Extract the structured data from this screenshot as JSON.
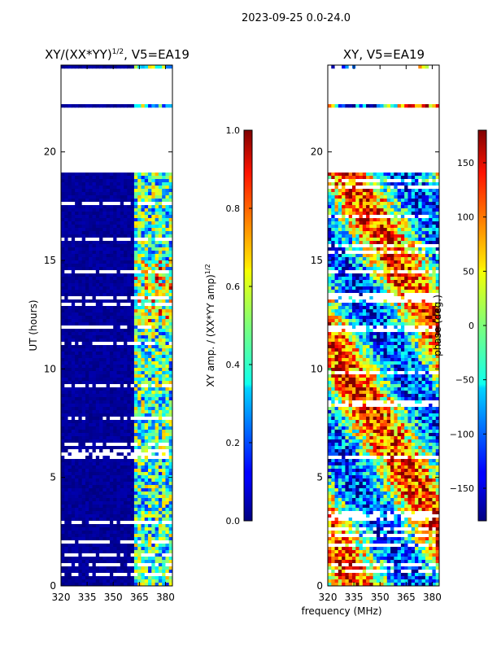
{
  "figure": {
    "suptitle": "2023-09-25 0.0-24.0",
    "xlabel": "frequency (MHz)"
  },
  "chart_data": [
    {
      "type": "heatmap",
      "title": "XY/(XX*YY)",
      "title_sup": "1/2",
      "title_suffix": ", V5=EA19",
      "xlabel": "",
      "ylabel": "UT (hours)",
      "xlim": [
        320,
        384
      ],
      "ylim": [
        0,
        24
      ],
      "xticks": [
        320,
        335,
        350,
        365,
        380
      ],
      "yticks": [
        0,
        5,
        10,
        15,
        20
      ],
      "flagged_ut_ranges": [
        [
          19.1,
          22.1
        ],
        [
          22.2,
          23.9
        ]
      ],
      "colorbar": {
        "label": "XY amp. / (XX*YY amp)",
        "label_sup": "1/2",
        "range": [
          0.0,
          1.0
        ],
        "ticks": [
          "0.0",
          "0.2",
          "0.4",
          "0.6",
          "0.8",
          "1.0"
        ],
        "colormap": "jet"
      }
    },
    {
      "type": "heatmap",
      "title": "XY, V5=EA19",
      "xlabel": "frequency (MHz)",
      "ylabel": "",
      "xlim": [
        320,
        384
      ],
      "ylim": [
        0,
        24
      ],
      "xticks": [
        320,
        335,
        350,
        365,
        380
      ],
      "yticks": [
        0,
        5,
        10,
        15,
        20
      ],
      "flagged_ut_ranges": [
        [
          19.1,
          22.1
        ],
        [
          22.2,
          23.9
        ]
      ],
      "colorbar": {
        "label": "phase (deg.)",
        "range": [
          -180,
          180
        ],
        "ticks": [
          "−150",
          "−100",
          "−50",
          "0",
          "50",
          "100",
          "150"
        ],
        "colormap": "jet"
      }
    }
  ]
}
